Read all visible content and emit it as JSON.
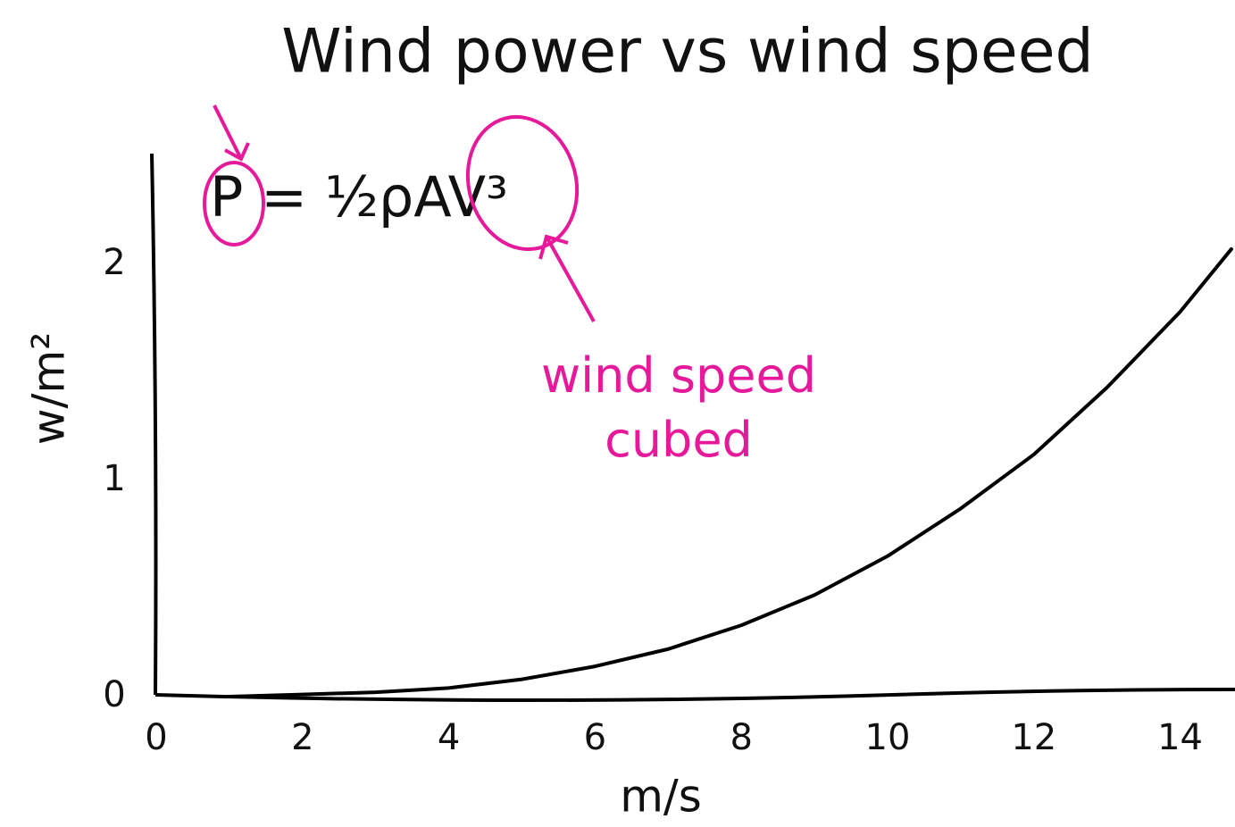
{
  "chart_data": {
    "type": "line",
    "title": "Wind power vs wind speed",
    "formula": "P = ½ρAV³",
    "annotation": "wind speed cubed",
    "x_label": "m/s",
    "y_label": "w/m²",
    "x": [
      1,
      2,
      3,
      4,
      5,
      6,
      7,
      8,
      9,
      10,
      11,
      12,
      13,
      14,
      14.7
    ],
    "series": [
      {
        "name": "wind power",
        "color": "#000000",
        "values": [
          0.0,
          0.01,
          0.02,
          0.04,
          0.08,
          0.14,
          0.22,
          0.33,
          0.47,
          0.65,
          0.87,
          1.12,
          1.43,
          1.78,
          2.07
        ]
      }
    ],
    "xlim": [
      0,
      14.75
    ],
    "ylim": [
      0,
      2.52
    ],
    "xticks": [
      0,
      2,
      4,
      6,
      8,
      10,
      12,
      14
    ],
    "yticks": [
      0,
      1,
      2
    ],
    "annotation_color": "#e6199b",
    "grid": false
  }
}
